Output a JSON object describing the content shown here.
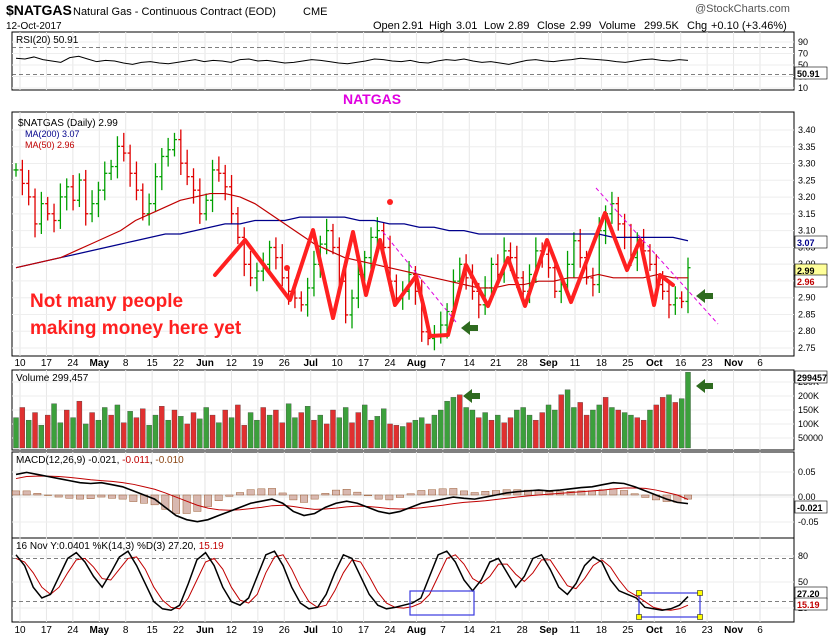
{
  "header": {
    "symbol": "$NATGAS",
    "description": "Natural Gas - Continuous Contract (EOD)",
    "exchange": "CME",
    "date": "12-Oct-2017",
    "open_label": "Open",
    "open": "2.91",
    "high_label": "High",
    "high": "3.01",
    "low_label": "Low",
    "low": "2.89",
    "close_label": "Close",
    "close": "2.99",
    "volume_label": "Volume",
    "volume": "299.5K",
    "chg_label": "Chg",
    "chg": "+0.10 (+3.46%)",
    "watermark": "@StockCharts.com"
  },
  "annotations": {
    "natgas_label": "NATGAS",
    "comment_line1": "Not many people",
    "comment_line2": "making money here yet"
  },
  "colors": {
    "up": "#00a000",
    "down": "#e00000",
    "ma200": "#00008b",
    "ma50": "#c00000",
    "annotation_red": "#ff2020",
    "annotation_magenta": "#e000e0",
    "arrow_green": "#2e6b1f",
    "volume_up": "#3ca03c",
    "volume_down": "#e03030"
  },
  "x_axis": {
    "labels": [
      "10",
      "17",
      "24",
      "May",
      "8",
      "15",
      "22",
      "Jun",
      "12",
      "19",
      "26",
      "Jul",
      "10",
      "17",
      "24",
      "Aug",
      "7",
      "14",
      "21",
      "28",
      "Sep",
      "11",
      "18",
      "25",
      "Oct",
      "16",
      "23",
      "Nov",
      "6"
    ],
    "bold": [
      "May",
      "Jun",
      "Jul",
      "Aug",
      "Sep",
      "Oct",
      "Nov"
    ]
  },
  "chart_data": [
    {
      "panel": "rsi",
      "type": "line",
      "title": "RSI(20) 50.91",
      "y_ticks": [
        "90",
        "70",
        "50",
        "30",
        "10"
      ],
      "levels": [
        70,
        30
      ],
      "last_value": "50.91",
      "ylim": [
        10,
        90
      ],
      "values": [
        54,
        53,
        56,
        52,
        50,
        48,
        55,
        57,
        53,
        49,
        51,
        50,
        47,
        45,
        48,
        49,
        47,
        46,
        48,
        50,
        52,
        49,
        51,
        50,
        48,
        52,
        53,
        50,
        51,
        49,
        47,
        48,
        50,
        52,
        51,
        49,
        47,
        46,
        48,
        50,
        53,
        52,
        50,
        49,
        51,
        48,
        47,
        50,
        52,
        51,
        53,
        50,
        48,
        49,
        47,
        45,
        48,
        51,
        52,
        50,
        49,
        51,
        52,
        54,
        53,
        52,
        51,
        49,
        48,
        50,
        52,
        53,
        51,
        50,
        52,
        51
      ]
    },
    {
      "panel": "price",
      "type": "ohlc",
      "title": "$NATGAS (Daily) 2.99",
      "ma_labels": [
        "MA(200) 3.07",
        "MA(50) 2.96"
      ],
      "y_ticks": [
        "3.40",
        "3.35",
        "3.30",
        "3.25",
        "3.20",
        "3.15",
        "3.10",
        "3.05",
        "3.00",
        "2.95",
        "2.90",
        "2.85",
        "2.80",
        "2.75"
      ],
      "last_labels": [
        "3.07",
        "2.99",
        "2.96"
      ],
      "ylim": [
        2.74,
        3.44
      ],
      "closes": [
        3.28,
        3.24,
        3.2,
        3.12,
        3.18,
        3.15,
        3.13,
        3.2,
        3.23,
        3.19,
        3.25,
        3.15,
        3.18,
        3.22,
        3.27,
        3.29,
        3.35,
        3.33,
        3.27,
        3.22,
        3.15,
        3.18,
        3.26,
        3.32,
        3.34,
        3.37,
        3.3,
        3.26,
        3.22,
        3.15,
        3.19,
        3.28,
        3.27,
        3.23,
        3.15,
        3.08,
        3.0,
        2.96,
        2.98,
        3.0,
        3.05,
        3.02,
        2.96,
        2.92,
        2.9,
        2.88,
        2.93,
        3.0,
        3.06,
        3.1,
        3.05,
        2.95,
        2.85,
        2.9,
        2.97,
        3.02,
        3.08,
        3.1,
        3.05,
        2.95,
        2.9,
        2.92,
        2.97,
        2.92,
        2.8,
        2.78,
        2.79,
        2.82,
        2.86,
        2.95,
        3.0,
        2.96,
        2.92,
        2.88,
        2.93,
        3.0,
        2.97,
        3.04,
        3.02,
        2.96,
        2.92,
        2.97,
        3.04,
        3.03,
        2.99,
        2.92,
        2.94,
        3.0,
        3.07,
        3.02,
        2.96,
        2.94,
        3.1,
        3.15,
        3.18,
        3.12,
        3.08,
        3.02,
        3.07,
        3.04,
        3.0,
        2.94,
        2.92,
        2.88,
        2.9,
        2.89,
        2.99
      ],
      "ma200": [
        2.99,
        3.0,
        3.01,
        3.02,
        3.03,
        3.04,
        3.05,
        3.06,
        3.07,
        3.08,
        3.09,
        3.09,
        3.1,
        3.11,
        3.12,
        3.12,
        3.13,
        3.13,
        3.13,
        3.14,
        3.14,
        3.14,
        3.14,
        3.13,
        3.13,
        3.12,
        3.12,
        3.11,
        3.11,
        3.1,
        3.1,
        3.09,
        3.09,
        3.09,
        3.09,
        3.09,
        3.09,
        3.09,
        3.09,
        3.09,
        3.08,
        3.08,
        3.08,
        3.08,
        3.08,
        3.07
      ],
      "ma50": [
        2.99,
        3.0,
        3.01,
        3.02,
        3.04,
        3.06,
        3.08,
        3.1,
        3.13,
        3.15,
        3.17,
        3.19,
        3.2,
        3.21,
        3.21,
        3.2,
        3.18,
        3.15,
        3.12,
        3.09,
        3.06,
        3.04,
        3.02,
        3.01,
        3.0,
        2.99,
        2.98,
        2.97,
        2.96,
        2.95,
        2.94,
        2.93,
        2.93,
        2.94,
        2.94,
        2.95,
        2.95,
        2.96,
        2.96,
        2.97,
        2.96,
        2.96,
        2.96,
        2.97,
        2.96,
        2.96
      ]
    },
    {
      "panel": "volume",
      "type": "bar",
      "title": "Volume 299,457",
      "y_ticks": [
        "250K",
        "200K",
        "150K",
        "100K",
        "50000"
      ],
      "last_value": "299457",
      "ylim": [
        0,
        300000
      ],
      "values": [
        120000,
        160000,
        110000,
        140000,
        90000,
        130000,
        175000,
        100000,
        150000,
        120000,
        185000,
        95000,
        140000,
        110000,
        160000,
        130000,
        170000,
        100000,
        145000,
        120000,
        155000,
        90000,
        130000,
        165000,
        110000,
        150000,
        125000,
        95000,
        140000,
        115000,
        160000,
        130000,
        100000,
        150000,
        120000,
        170000,
        90000,
        140000,
        110000,
        160000,
        130000,
        150000,
        100000,
        175000,
        120000,
        140000,
        165000,
        110000,
        130000,
        95000,
        150000,
        120000,
        160000,
        100000,
        140000,
        170000,
        110000,
        125000,
        155000,
        95000,
        90000,
        85000,
        100000,
        110000,
        120000,
        95000,
        130000,
        150000,
        185000,
        200000,
        210000,
        160000,
        150000,
        120000,
        140000,
        110000,
        130000,
        100000,
        120000,
        150000,
        160000,
        130000,
        110000,
        140000,
        170000,
        150000,
        210000,
        230000,
        160000,
        180000,
        130000,
        150000,
        170000,
        200000,
        160000,
        150000,
        140000,
        130000,
        120000,
        110000,
        150000,
        170000,
        200000,
        210000,
        180000,
        195000,
        299457
      ],
      "up_flags": [
        1,
        0,
        1,
        0,
        1,
        0,
        1,
        1,
        0,
        1,
        0,
        1,
        0,
        1,
        1,
        0,
        1,
        0,
        1,
        0,
        0,
        1,
        1,
        0,
        1,
        0,
        1,
        0,
        0,
        1,
        1,
        0,
        1,
        0,
        1,
        0,
        0,
        1,
        1,
        0,
        1,
        0,
        0,
        1,
        1,
        0,
        1,
        0,
        1,
        0,
        0,
        1,
        1,
        0,
        0,
        1,
        0,
        1,
        1,
        0,
        0,
        1,
        0,
        1,
        1,
        0,
        1,
        1,
        1,
        1,
        0,
        1,
        1,
        0,
        1,
        0,
        1,
        0,
        0,
        1,
        1,
        1,
        0,
        0,
        1,
        1,
        0,
        1,
        1,
        0,
        0,
        1,
        1,
        0,
        1,
        0,
        1,
        1,
        0,
        0,
        1,
        0,
        0,
        1,
        0,
        1,
        1
      ]
    },
    {
      "panel": "macd",
      "type": "line",
      "title": "MACD(12,26,9) -0.021, -0.011, -0.010",
      "title_parts": [
        "MACD(12,26,9) -0.021, ",
        "-0.011",
        ", ",
        "-0.010"
      ],
      "y_ticks": [
        "0.05",
        "0.00",
        "-0.05"
      ],
      "last_value": "-0.021",
      "ylim": [
        -0.09,
        0.09
      ],
      "macd": [
        0.05,
        0.055,
        0.05,
        0.045,
        0.04,
        0.035,
        0.03,
        0.028,
        0.03,
        0.025,
        0.02,
        0.01,
        0.0,
        -0.01,
        -0.03,
        -0.05,
        -0.06,
        -0.065,
        -0.06,
        -0.05,
        -0.04,
        -0.03,
        -0.02,
        -0.015,
        -0.01,
        -0.02,
        -0.04,
        -0.05,
        -0.045,
        -0.03,
        -0.02,
        -0.015,
        -0.02,
        -0.03,
        -0.04,
        -0.045,
        -0.04,
        -0.03,
        -0.02,
        -0.015,
        -0.01,
        -0.005,
        -0.008,
        -0.01,
        -0.005,
        0.0,
        0.005,
        0.008,
        0.01,
        0.012,
        0.01,
        0.012,
        0.015,
        0.018,
        0.02,
        0.025,
        0.03,
        0.028,
        0.02,
        0.01,
        0.0,
        -0.01,
        -0.018,
        -0.021
      ],
      "signal": [
        0.04,
        0.045,
        0.046,
        0.046,
        0.045,
        0.043,
        0.04,
        0.037,
        0.035,
        0.033,
        0.03,
        0.026,
        0.02,
        0.014,
        0.005,
        -0.005,
        -0.015,
        -0.025,
        -0.032,
        -0.036,
        -0.037,
        -0.036,
        -0.033,
        -0.03,
        -0.026,
        -0.025,
        -0.028,
        -0.032,
        -0.035,
        -0.034,
        -0.032,
        -0.029,
        -0.027,
        -0.028,
        -0.03,
        -0.033,
        -0.034,
        -0.033,
        -0.031,
        -0.028,
        -0.025,
        -0.021,
        -0.018,
        -0.016,
        -0.014,
        -0.011,
        -0.008,
        -0.005,
        -0.002,
        0.0,
        0.002,
        0.004,
        0.006,
        0.008,
        0.01,
        0.012,
        0.015,
        0.017,
        0.017,
        0.016,
        0.012,
        0.006,
        0.0,
        -0.011
      ],
      "histogram": [
        0.01,
        0.01,
        0.004,
        -0.001,
        -0.005,
        -0.008,
        -0.01,
        -0.009,
        -0.005,
        -0.008,
        -0.01,
        -0.016,
        -0.02,
        -0.024,
        -0.035,
        -0.045,
        -0.045,
        -0.04,
        -0.028,
        -0.014,
        -0.003,
        0.006,
        0.013,
        0.015,
        0.016,
        0.005,
        -0.012,
        -0.018,
        -0.01,
        0.004,
        0.012,
        0.014,
        0.007,
        -0.002,
        -0.01,
        -0.012,
        -0.006,
        0.003,
        0.011,
        0.013,
        0.015,
        0.016,
        0.01,
        0.006,
        0.009,
        0.011,
        0.013,
        0.013,
        0.012,
        0.012,
        0.008,
        0.008,
        0.009,
        0.01,
        0.01,
        0.013,
        0.015,
        0.011,
        0.003,
        -0.006,
        -0.012,
        -0.016,
        -0.018,
        -0.01
      ]
    },
    {
      "panel": "stochastic",
      "type": "line",
      "title": "%K(14,3) %D(3) 27.20, 15.19",
      "title_parts": [
        "16 Nov Y:0.0401",
        " %K(14,3) %D(3) 27.20, ",
        "15.19"
      ],
      "y_ticks": [
        "80",
        "50",
        "20"
      ],
      "last_labels": [
        "27.20",
        "15.19"
      ],
      "ylim": [
        0,
        100
      ],
      "k": [
        85,
        70,
        40,
        25,
        30,
        55,
        80,
        88,
        75,
        55,
        40,
        60,
        82,
        90,
        70,
        45,
        20,
        10,
        8,
        15,
        45,
        78,
        88,
        70,
        40,
        20,
        15,
        25,
        55,
        85,
        90,
        70,
        40,
        18,
        10,
        12,
        30,
        60,
        85,
        80,
        55,
        30,
        15,
        10,
        12,
        15,
        18,
        25,
        55,
        85,
        90,
        75,
        50,
        35,
        50,
        75,
        80,
        60,
        40,
        55,
        80,
        85,
        65,
        40,
        30,
        45,
        70,
        82,
        75,
        50,
        35,
        30,
        25,
        12,
        10,
        8,
        10,
        15,
        27
      ],
      "d": [
        80,
        75,
        60,
        40,
        30,
        40,
        60,
        78,
        80,
        68,
        52,
        50,
        65,
        80,
        82,
        65,
        40,
        22,
        12,
        10,
        25,
        50,
        75,
        80,
        65,
        40,
        22,
        18,
        30,
        60,
        82,
        85,
        65,
        40,
        20,
        12,
        15,
        35,
        60,
        78,
        75,
        55,
        33,
        18,
        12,
        11,
        13,
        18,
        30,
        55,
        80,
        85,
        72,
        52,
        45,
        55,
        72,
        72,
        58,
        48,
        60,
        78,
        78,
        60,
        42,
        38,
        52,
        70,
        78,
        68,
        50,
        35,
        28,
        20,
        12,
        9,
        8,
        10,
        15
      ]
    }
  ]
}
